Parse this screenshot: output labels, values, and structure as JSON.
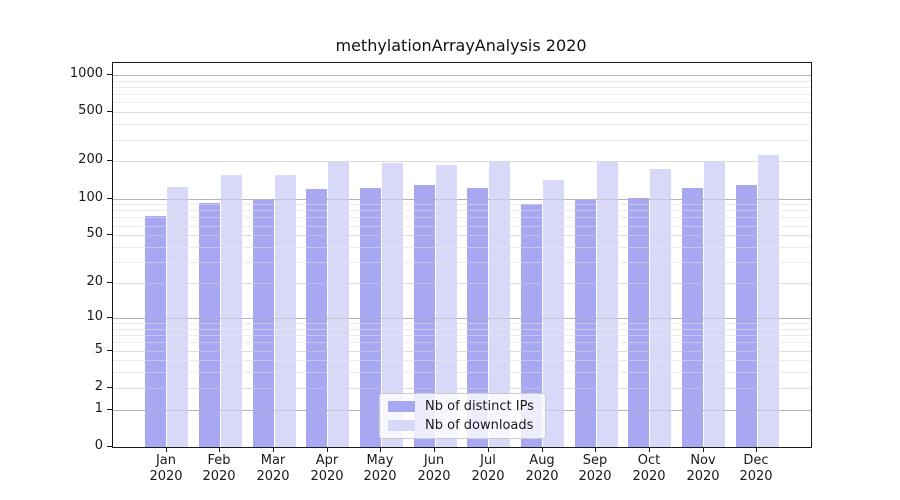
{
  "chart_data": {
    "type": "bar",
    "title": "methylationArrayAnalysis 2020",
    "categories": [
      "Jan 2020",
      "Feb 2020",
      "Mar 2020",
      "Apr 2020",
      "May 2020",
      "Jun 2020",
      "Jul 2020",
      "Aug 2020",
      "Sep 2020",
      "Oct 2020",
      "Nov 2020",
      "Dec 2020"
    ],
    "series": [
      {
        "name": "Nb of distinct IPs",
        "color": "#a7a7f2",
        "values": [
          72,
          92,
          98,
          120,
          121,
          130,
          123,
          91,
          97,
          101,
          122,
          128
        ]
      },
      {
        "name": "Nb of downloads",
        "color": "#d8d8f8",
        "values": [
          124,
          156,
          154,
          199,
          194,
          189,
          202,
          141,
          199,
          174,
          200,
          225
        ]
      }
    ],
    "xlabel": "",
    "ylabel": "",
    "yscale": "log1p",
    "ylim": [
      0,
      1250
    ],
    "yticks": [
      0,
      1,
      2,
      5,
      10,
      20,
      50,
      100,
      200,
      500,
      1000
    ],
    "grid": "horizontal",
    "legend_position": "inside-bottom-center",
    "colors": {
      "grid_decade": "#b3b3b3",
      "grid_mid": "#dcdcdc",
      "grid_minor": "#ececec",
      "axis": "#1a1a1a",
      "background": "#ffffff"
    }
  }
}
